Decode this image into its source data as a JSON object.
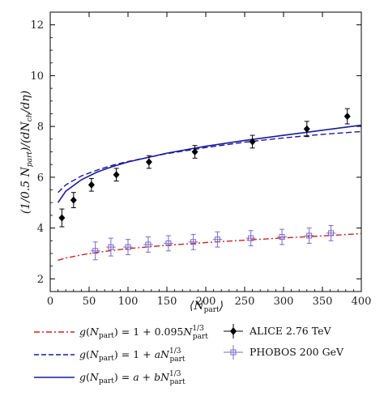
{
  "chart_data": {
    "type": "scatter",
    "xlabel": "⟨N_part⟩",
    "ylabel": "(1/0.5 N_part)(dN_ch/dη)",
    "xlim": [
      0,
      400
    ],
    "ylim": [
      1.5,
      12.5
    ],
    "xticks": [
      0,
      50,
      100,
      150,
      200,
      250,
      300,
      350,
      400
    ],
    "yticks": [
      2,
      4,
      6,
      8,
      10,
      12
    ],
    "grid": false,
    "legend_position": "bottom",
    "series": [
      {
        "name": "ALICE 2.76 TeV",
        "kind": "points",
        "marker": "diamond",
        "color": "#000000",
        "x": [
          15,
          30,
          53,
          85,
          127,
          186,
          260,
          330,
          382
        ],
        "y": [
          4.4,
          5.1,
          5.7,
          6.1,
          6.6,
          7.0,
          7.4,
          7.9,
          8.4
        ],
        "yerr": [
          0.35,
          0.3,
          0.25,
          0.25,
          0.25,
          0.25,
          0.25,
          0.3,
          0.3
        ]
      },
      {
        "name": "PHOBOS 200 GeV",
        "kind": "points",
        "marker": "plus-box",
        "color": "#7b68c8",
        "x": [
          58,
          78,
          100,
          126,
          152,
          184,
          215,
          258,
          298,
          333,
          361
        ],
        "y": [
          3.1,
          3.25,
          3.25,
          3.35,
          3.4,
          3.45,
          3.55,
          3.6,
          3.65,
          3.7,
          3.8
        ],
        "yerr": [
          0.35,
          0.35,
          0.3,
          0.3,
          0.3,
          0.3,
          0.3,
          0.3,
          0.3,
          0.3,
          0.3
        ],
        "xerr": [
          6,
          6,
          6,
          6,
          6,
          6,
          6,
          6,
          6,
          6,
          6
        ]
      },
      {
        "name": "g(N_part) = 1 + 0.095 N_part^{1/3}",
        "kind": "line",
        "style": "dashdot",
        "color": "#cc2222",
        "x": [
          10,
          20,
          40,
          60,
          80,
          100,
          150,
          200,
          250,
          300,
          350,
          400
        ],
        "y": [
          2.73,
          2.82,
          2.94,
          3.04,
          3.12,
          3.19,
          3.32,
          3.43,
          3.52,
          3.61,
          3.69,
          3.78
        ]
      },
      {
        "name": "g(N_part) = 1 + a N_part^{1/3}",
        "kind": "line",
        "style": "dashed",
        "color": "#1a1aa0",
        "x": [
          10,
          20,
          40,
          60,
          80,
          100,
          150,
          200,
          250,
          300,
          350,
          400
        ],
        "y": [
          5.4,
          5.7,
          6.05,
          6.28,
          6.47,
          6.62,
          6.93,
          7.17,
          7.38,
          7.55,
          7.69,
          7.8
        ]
      },
      {
        "name": "g(N_part) = a + b N_part^{1/3}",
        "kind": "line",
        "style": "solid",
        "color": "#1a1aa0",
        "x": [
          10,
          20,
          40,
          60,
          80,
          100,
          150,
          200,
          250,
          300,
          350,
          400
        ],
        "y": [
          5.0,
          5.45,
          5.9,
          6.2,
          6.42,
          6.6,
          6.95,
          7.22,
          7.45,
          7.65,
          7.85,
          8.05
        ]
      }
    ]
  },
  "legend": {
    "entries": [
      {
        "key": "dashdot",
        "text": "1 + 0.095"
      },
      {
        "key": "dashed",
        "text": "1 + "
      },
      {
        "key": "solid",
        "text": " + "
      },
      {
        "key": "alice",
        "text": "ALICE 2.76 TeV"
      },
      {
        "key": "phobos",
        "text": "PHOBOS 200 GeV"
      }
    ]
  }
}
